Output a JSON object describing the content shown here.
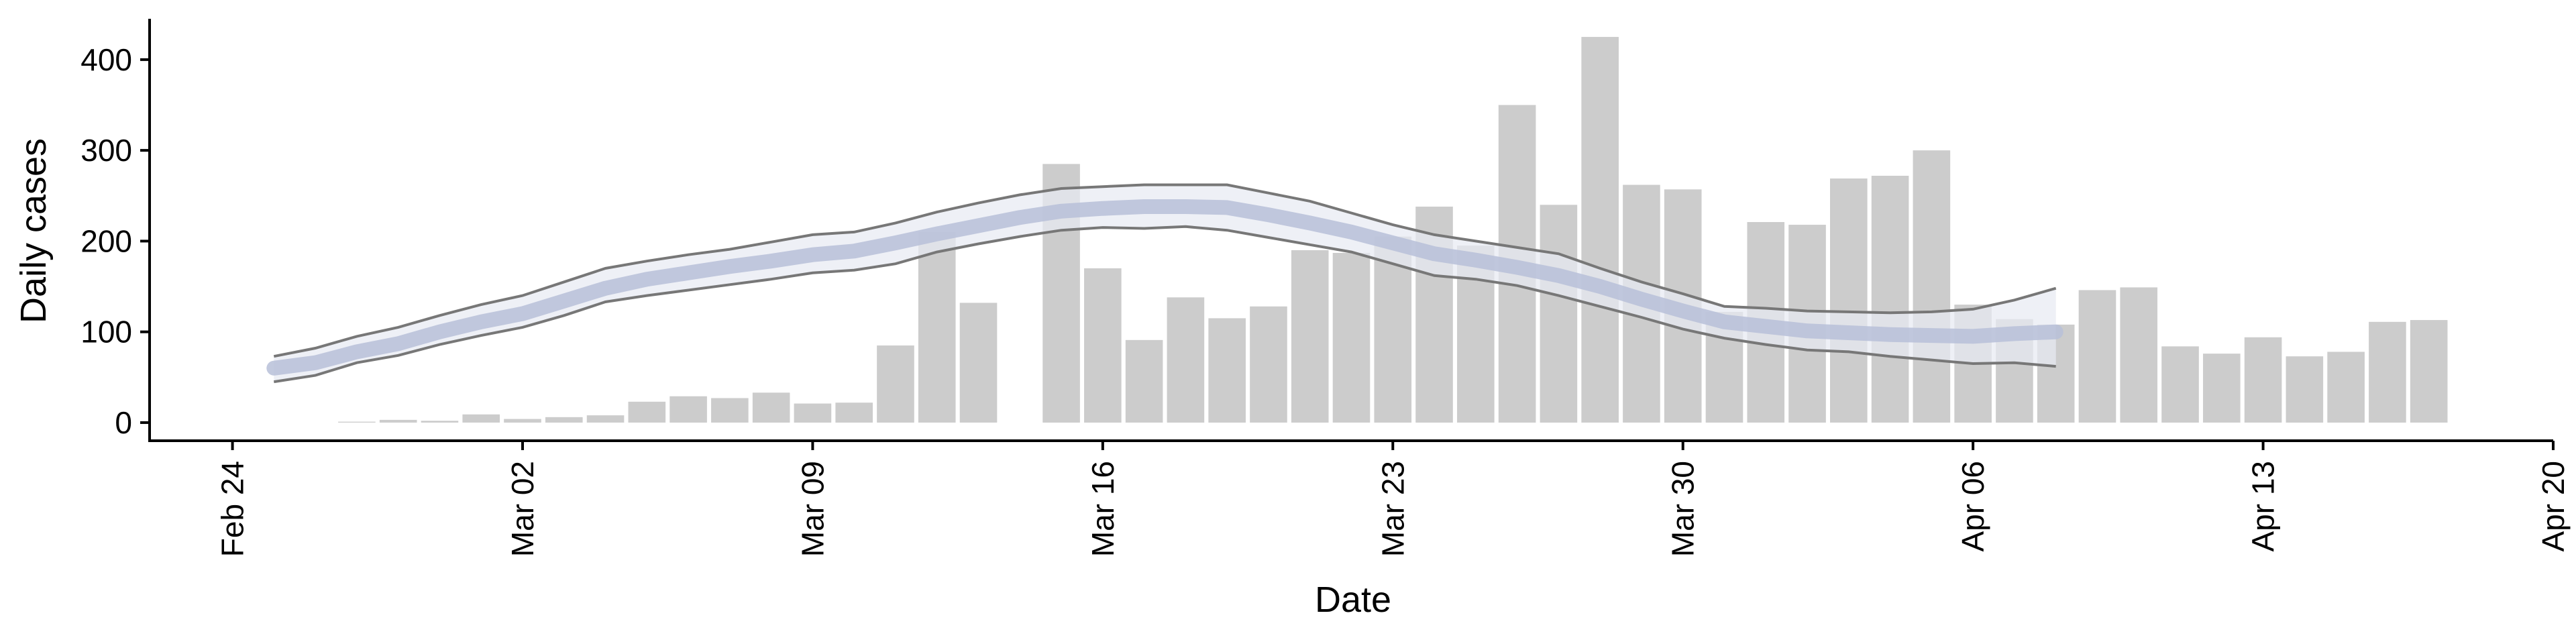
{
  "chart_data": {
    "type": "bar",
    "title": "",
    "xlabel": "Date",
    "ylabel": "Daily cases",
    "x_tick_labels": [
      "Feb 24",
      "Mar 02",
      "Mar 09",
      "Mar 16",
      "Mar 23",
      "Mar 30",
      "Apr 06",
      "Apr 13",
      "Apr 20"
    ],
    "x_ticks": [
      "2020-02-24",
      "2020-03-02",
      "2020-03-09",
      "2020-03-16",
      "2020-03-23",
      "2020-03-30",
      "2020-04-06",
      "2020-04-13",
      "2020-04-20"
    ],
    "y_ticks": [
      0,
      100,
      200,
      300,
      400
    ],
    "xlim": [
      "2020-02-22",
      "2020-04-20"
    ],
    "ylim": [
      -20,
      445
    ],
    "grid": false,
    "colors": {
      "bars": "#cccccc",
      "band_fill": "#e8eaf3",
      "band_edge": "#777777",
      "median": "#b7c0d8"
    },
    "bars": {
      "dates": [
        "2020-02-27",
        "2020-02-28",
        "2020-02-29",
        "2020-03-01",
        "2020-03-02",
        "2020-03-03",
        "2020-03-04",
        "2020-03-05",
        "2020-03-06",
        "2020-03-07",
        "2020-03-08",
        "2020-03-09",
        "2020-03-10",
        "2020-03-11",
        "2020-03-12",
        "2020-03-13",
        "2020-03-15",
        "2020-03-16",
        "2020-03-17",
        "2020-03-18",
        "2020-03-19",
        "2020-03-20",
        "2020-03-21",
        "2020-03-22",
        "2020-03-23",
        "2020-03-24",
        "2020-03-25",
        "2020-03-26",
        "2020-03-27",
        "2020-03-28",
        "2020-03-29",
        "2020-03-30",
        "2020-03-31",
        "2020-04-01",
        "2020-04-02",
        "2020-04-03",
        "2020-04-04",
        "2020-04-05",
        "2020-04-06",
        "2020-04-07",
        "2020-04-08",
        "2020-04-09",
        "2020-04-10",
        "2020-04-11",
        "2020-04-12",
        "2020-04-13",
        "2020-04-14",
        "2020-04-15",
        "2020-04-16",
        "2020-04-17"
      ],
      "values": [
        1,
        3,
        2,
        9,
        4,
        6,
        8,
        23,
        29,
        27,
        33,
        21,
        22,
        85,
        210,
        132,
        285,
        170,
        91,
        138,
        115,
        128,
        190,
        187,
        205,
        238,
        195,
        350,
        240,
        425,
        262,
        257,
        122,
        221,
        218,
        269,
        272,
        300,
        130,
        114,
        108,
        146,
        149,
        84,
        76,
        94,
        73,
        78,
        111,
        113
      ]
    },
    "series": [
      {
        "kind": "band",
        "dates": [
          "2020-02-25",
          "2020-02-26",
          "2020-02-27",
          "2020-02-28",
          "2020-02-29",
          "2020-03-01",
          "2020-03-02",
          "2020-03-03",
          "2020-03-04",
          "2020-03-05",
          "2020-03-06",
          "2020-03-07",
          "2020-03-08",
          "2020-03-09",
          "2020-03-10",
          "2020-03-11",
          "2020-03-12",
          "2020-03-13",
          "2020-03-14",
          "2020-03-15",
          "2020-03-16",
          "2020-03-17",
          "2020-03-18",
          "2020-03-19",
          "2020-03-20",
          "2020-03-21",
          "2020-03-22",
          "2020-03-23",
          "2020-03-24",
          "2020-03-25",
          "2020-03-26",
          "2020-03-27",
          "2020-03-28",
          "2020-03-29",
          "2020-03-30",
          "2020-03-31",
          "2020-04-01",
          "2020-04-02",
          "2020-04-03",
          "2020-04-04",
          "2020-04-05",
          "2020-04-06",
          "2020-04-07",
          "2020-04-08"
        ],
        "upper": [
          73,
          82,
          95,
          105,
          118,
          130,
          140,
          155,
          170,
          178,
          185,
          191,
          199,
          207,
          210,
          220,
          232,
          242,
          251,
          258,
          260,
          262,
          262,
          262,
          253,
          244,
          231,
          218,
          207,
          200,
          193,
          186,
          170,
          155,
          142,
          128,
          126,
          123,
          122,
          121,
          122,
          125,
          135,
          148
        ],
        "lower": [
          45,
          52,
          66,
          74,
          86,
          96,
          105,
          118,
          133,
          140,
          146,
          152,
          158,
          165,
          168,
          175,
          188,
          197,
          205,
          212,
          215,
          214,
          216,
          212,
          204,
          196,
          188,
          175,
          162,
          158,
          151,
          140,
          128,
          116,
          103,
          93,
          86,
          80,
          78,
          73,
          69,
          65,
          66,
          62
        ]
      },
      {
        "kind": "median",
        "dates": [
          "2020-02-25",
          "2020-02-26",
          "2020-02-27",
          "2020-02-28",
          "2020-02-29",
          "2020-03-01",
          "2020-03-02",
          "2020-03-03",
          "2020-03-04",
          "2020-03-05",
          "2020-03-06",
          "2020-03-07",
          "2020-03-08",
          "2020-03-09",
          "2020-03-10",
          "2020-03-11",
          "2020-03-12",
          "2020-03-13",
          "2020-03-14",
          "2020-03-15",
          "2020-03-16",
          "2020-03-17",
          "2020-03-18",
          "2020-03-19",
          "2020-03-20",
          "2020-03-21",
          "2020-03-22",
          "2020-03-23",
          "2020-03-24",
          "2020-03-25",
          "2020-03-26",
          "2020-03-27",
          "2020-03-28",
          "2020-03-29",
          "2020-03-30",
          "2020-03-31",
          "2020-04-01",
          "2020-04-02",
          "2020-04-03",
          "2020-04-04",
          "2020-04-05",
          "2020-04-06",
          "2020-04-07",
          "2020-04-08"
        ],
        "values": [
          60,
          66,
          78,
          87,
          100,
          111,
          120,
          134,
          148,
          158,
          165,
          172,
          178,
          185,
          189,
          198,
          208,
          217,
          226,
          233,
          236,
          238,
          238,
          237,
          229,
          220,
          210,
          198,
          186,
          179,
          171,
          162,
          150,
          136,
          123,
          111,
          106,
          101,
          99,
          97,
          96,
          95,
          98,
          100
        ]
      }
    ]
  }
}
